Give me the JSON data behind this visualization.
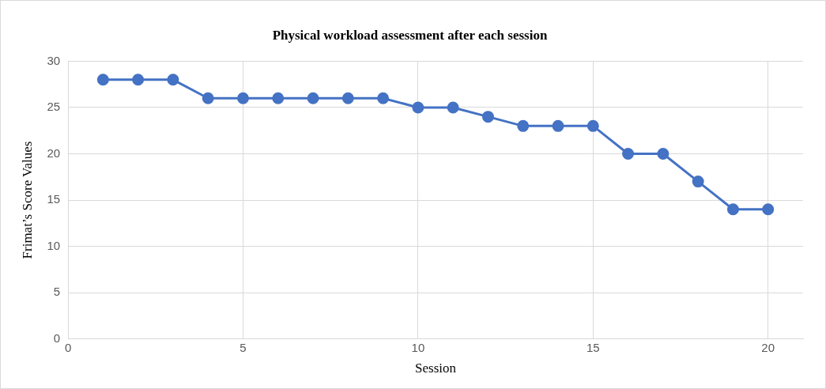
{
  "chart_data": {
    "type": "line",
    "title": "Physical workload assessment after each session",
    "xlabel": "Session",
    "ylabel": "Frimat’s Score Values",
    "x": [
      1,
      2,
      3,
      4,
      5,
      6,
      7,
      8,
      9,
      10,
      11,
      12,
      13,
      14,
      15,
      16,
      17,
      18,
      19,
      20
    ],
    "series": [
      {
        "color": "#4472c4",
        "values": [
          28,
          28,
          28,
          26,
          26,
          26,
          26,
          26,
          26,
          25,
          25,
          24,
          23,
          23,
          23,
          20,
          20,
          17,
          14,
          14
        ]
      }
    ],
    "xlim": [
      0,
      21
    ],
    "xticks": [
      0,
      5,
      10,
      15,
      20
    ],
    "ylim": [
      0,
      30
    ],
    "yticks": [
      0,
      5,
      10,
      15,
      20,
      25,
      30
    ],
    "grid": true,
    "legend": false,
    "marker": "circle",
    "line_style": "solid"
  }
}
